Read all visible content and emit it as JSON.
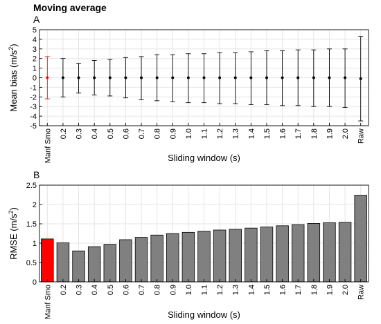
{
  "figure_title": "Moving average",
  "colors": {
    "highlight": "#ff0000",
    "bar_gray": "#808080",
    "grid": "#e5e5e5",
    "axis": "#000000"
  },
  "chart_data": [
    {
      "panel": "A",
      "type": "scatter",
      "error_bars": true,
      "categories": [
        "Manf Smo",
        "0.2",
        "0.3",
        "0.4",
        "0.5",
        "0.6",
        "0.7",
        "0.8",
        "0.9",
        "1.0",
        "1.1",
        "1.2",
        "1.3",
        "1.4",
        "1.5",
        "1.6",
        "1.7",
        "1.8",
        "1.9",
        "2.0",
        "Raw"
      ],
      "values": [
        0,
        0,
        0,
        0,
        0,
        0,
        0,
        0,
        0,
        0,
        0,
        0,
        0,
        0,
        0,
        0,
        0,
        0,
        0,
        0,
        -0.1
      ],
      "err_upper": [
        2.2,
        2.0,
        1.5,
        1.8,
        1.9,
        2.1,
        2.2,
        2.4,
        2.4,
        2.5,
        2.5,
        2.6,
        2.6,
        2.7,
        2.8,
        2.8,
        2.9,
        2.9,
        3.0,
        3.0,
        4.3
      ],
      "err_lower": [
        -2.2,
        -2.0,
        -1.6,
        -1.8,
        -1.9,
        -2.1,
        -2.3,
        -2.4,
        -2.5,
        -2.6,
        -2.6,
        -2.7,
        -2.7,
        -2.8,
        -2.8,
        -2.9,
        -2.9,
        -3.0,
        -3.0,
        -3.1,
        -4.5
      ],
      "xlabel": "Sliding window (s)",
      "ylabel": "Mean bias (m/s",
      "ylabel_sup": "2",
      "ylabel_end": ")",
      "ylim": [
        -5,
        5
      ],
      "yticks": [
        5,
        4,
        3,
        2,
        1,
        0,
        -1,
        -2,
        -3,
        -4,
        -5
      ],
      "ytick_labels": [
        "5",
        "4",
        "3",
        "2",
        "1",
        "0",
        "-1",
        "-2",
        "-3",
        "-4",
        "-5"
      ],
      "grid": true,
      "highlight_index": 0
    },
    {
      "panel": "B",
      "type": "bar",
      "categories": [
        "Manf Smo",
        "0.2",
        "0.3",
        "0.4",
        "0.5",
        "0.6",
        "0.7",
        "0.8",
        "0.9",
        "1.0",
        "1.1",
        "1.2",
        "1.3",
        "1.4",
        "1.5",
        "1.6",
        "1.7",
        "1.8",
        "1.9",
        "2.0",
        "Raw"
      ],
      "values": [
        1.11,
        1.01,
        0.8,
        0.91,
        0.97,
        1.09,
        1.15,
        1.21,
        1.25,
        1.28,
        1.31,
        1.34,
        1.36,
        1.39,
        1.42,
        1.45,
        1.48,
        1.51,
        1.53,
        1.54,
        2.24
      ],
      "xlabel": "Sliding window (s)",
      "ylabel": "RMSE (m/s",
      "ylabel_sup": "2",
      "ylabel_end": ")",
      "ylim": [
        0,
        2.5
      ],
      "yticks": [
        2.5,
        2,
        1.5,
        1,
        0.5,
        0
      ],
      "ytick_labels": [
        "2.5",
        "2",
        "1.5",
        "1",
        "0.5",
        "0"
      ],
      "grid": true,
      "highlight_index": 0
    }
  ]
}
